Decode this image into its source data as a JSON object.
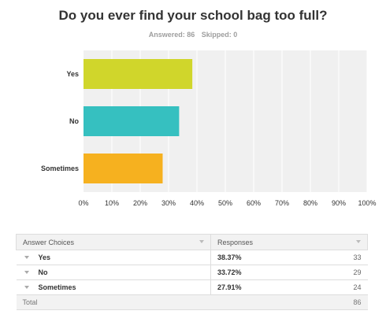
{
  "title": "Do you ever find your school bag too full?",
  "answered_label": "Answered: 86",
  "skipped_label": "Skipped: 0",
  "colors": {
    "plot_background": "#f0f0f0",
    "gridline": "#ffffff",
    "bars": [
      "#d0d62b",
      "#36c0c0",
      "#f6b11f"
    ]
  },
  "chart_data": {
    "type": "bar",
    "orientation": "horizontal",
    "categories": [
      "Yes",
      "No",
      "Sometimes"
    ],
    "values": [
      38.37,
      33.72,
      27.91
    ],
    "xlim": [
      0,
      100
    ],
    "ticks": [
      "0%",
      "10%",
      "20%",
      "30%",
      "40%",
      "50%",
      "60%",
      "70%",
      "80%",
      "90%",
      "100%"
    ],
    "grid": true
  },
  "table": {
    "headers": [
      "Answer Choices",
      "Responses"
    ],
    "rows": [
      {
        "choice": "Yes",
        "percent": "38.37%",
        "count": "33"
      },
      {
        "choice": "No",
        "percent": "33.72%",
        "count": "29"
      },
      {
        "choice": "Sometimes",
        "percent": "27.91%",
        "count": "24"
      }
    ],
    "total_label": "Total",
    "total_count": "86"
  }
}
